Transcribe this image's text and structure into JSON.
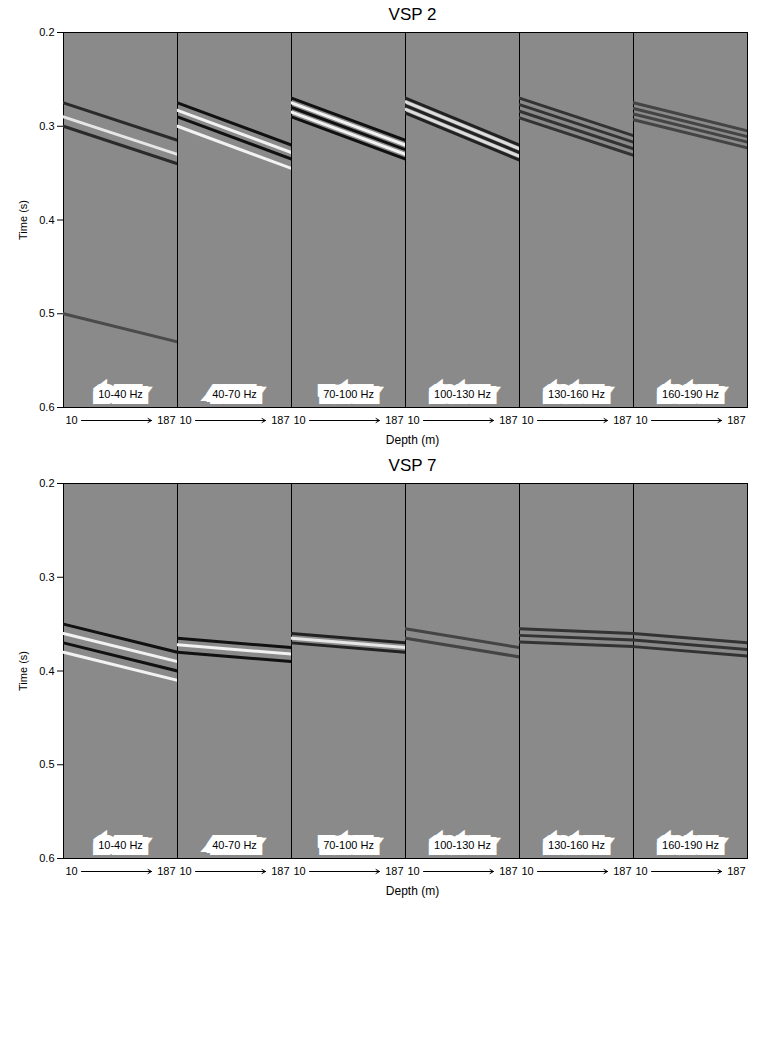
{
  "chart_data": [
    {
      "type": "line",
      "title": "VSP 2",
      "xlabel": "Depth (m)",
      "ylabel": "Time (s)",
      "xlim": [
        10,
        187
      ],
      "xticks": [
        10,
        187
      ],
      "ylim": [
        0.6,
        0.2
      ],
      "yticks": [
        0.2,
        0.3,
        0.4,
        0.5,
        0.6
      ],
      "panels": [
        {
          "label": "10-40 Hz",
          "x": [
            10,
            187
          ],
          "series": [
            {
              "color": "#2a2a2a",
              "values": [
                0.275,
                0.315
              ]
            },
            {
              "color": "#e6e6e6",
              "values": [
                0.29,
                0.33
              ]
            },
            {
              "color": "#2a2a2a",
              "values": [
                0.3,
                0.34
              ]
            },
            {
              "color": "#4a4a4a",
              "values": [
                0.5,
                0.53
              ]
            }
          ]
        },
        {
          "label": "40-70 Hz",
          "x": [
            10,
            187
          ],
          "series": [
            {
              "color": "#111111",
              "values": [
                0.275,
                0.32
              ]
            },
            {
              "color": "#f2f2f2",
              "values": [
                0.283,
                0.328
              ]
            },
            {
              "color": "#111111",
              "values": [
                0.29,
                0.335
              ]
            },
            {
              "color": "#f2f2f2",
              "values": [
                0.3,
                0.345
              ]
            }
          ]
        },
        {
          "label": "70-100 Hz",
          "x": [
            10,
            187
          ],
          "series": [
            {
              "color": "#111111",
              "values": [
                0.27,
                0.315
              ]
            },
            {
              "color": "#f2f2f2",
              "values": [
                0.275,
                0.32
              ]
            },
            {
              "color": "#111111",
              "values": [
                0.28,
                0.325
              ]
            },
            {
              "color": "#f2f2f2",
              "values": [
                0.285,
                0.33
              ]
            },
            {
              "color": "#111111",
              "values": [
                0.29,
                0.335
              ]
            }
          ]
        },
        {
          "label": "100-130 Hz",
          "x": [
            10,
            187
          ],
          "series": [
            {
              "color": "#222222",
              "values": [
                0.27,
                0.32
              ]
            },
            {
              "color": "#dddddd",
              "values": [
                0.274,
                0.324
              ]
            },
            {
              "color": "#222222",
              "values": [
                0.278,
                0.328
              ]
            },
            {
              "color": "#dddddd",
              "values": [
                0.282,
                0.332
              ]
            },
            {
              "color": "#222222",
              "values": [
                0.286,
                0.336
              ]
            }
          ]
        },
        {
          "label": "130-160 Hz",
          "x": [
            10,
            187
          ],
          "series": [
            {
              "color": "#333333",
              "values": [
                0.27,
                0.31
              ]
            },
            {
              "color": "#333333",
              "values": [
                0.277,
                0.317
              ]
            },
            {
              "color": "#333333",
              "values": [
                0.284,
                0.324
              ]
            },
            {
              "color": "#333333",
              "values": [
                0.291,
                0.331
              ]
            }
          ]
        },
        {
          "label": "160-190 Hz",
          "x": [
            10,
            187
          ],
          "series": [
            {
              "color": "#444444",
              "values": [
                0.275,
                0.305
              ]
            },
            {
              "color": "#444444",
              "values": [
                0.281,
                0.311
              ]
            },
            {
              "color": "#444444",
              "values": [
                0.287,
                0.317
              ]
            },
            {
              "color": "#444444",
              "values": [
                0.293,
                0.323
              ]
            }
          ]
        }
      ]
    },
    {
      "type": "line",
      "title": "VSP 7",
      "xlabel": "Depth (m)",
      "ylabel": "Time (s)",
      "xlim": [
        10,
        187
      ],
      "xticks": [
        10,
        187
      ],
      "ylim": [
        0.6,
        0.2
      ],
      "yticks": [
        0.2,
        0.3,
        0.4,
        0.5,
        0.6
      ],
      "panels": [
        {
          "label": "10-40 Hz",
          "x": [
            10,
            187
          ],
          "series": [
            {
              "color": "#111111",
              "values": [
                0.35,
                0.38
              ]
            },
            {
              "color": "#f2f2f2",
              "values": [
                0.36,
                0.39
              ]
            },
            {
              "color": "#111111",
              "values": [
                0.37,
                0.4
              ]
            },
            {
              "color": "#f2f2f2",
              "values": [
                0.38,
                0.41
              ]
            }
          ]
        },
        {
          "label": "40-70 Hz",
          "x": [
            10,
            187
          ],
          "series": [
            {
              "color": "#111111",
              "values": [
                0.365,
                0.375
              ]
            },
            {
              "color": "#f2f2f2",
              "values": [
                0.372,
                0.382
              ]
            },
            {
              "color": "#111111",
              "values": [
                0.38,
                0.39
              ]
            }
          ]
        },
        {
          "label": "70-100 Hz",
          "x": [
            10,
            187
          ],
          "series": [
            {
              "color": "#222222",
              "values": [
                0.36,
                0.37
              ]
            },
            {
              "color": "#e6e6e6",
              "values": [
                0.365,
                0.375
              ]
            },
            {
              "color": "#222222",
              "values": [
                0.37,
                0.38
              ]
            }
          ]
        },
        {
          "label": "100-130 Hz",
          "x": [
            10,
            187
          ],
          "series": [
            {
              "color": "#444444",
              "values": [
                0.355,
                0.375
              ]
            },
            {
              "color": "#444444",
              "values": [
                0.365,
                0.385
              ]
            }
          ]
        },
        {
          "label": "130-160 Hz",
          "x": [
            10,
            187
          ],
          "series": [
            {
              "color": "#333333",
              "values": [
                0.355,
                0.36
              ]
            },
            {
              "color": "#333333",
              "values": [
                0.362,
                0.367
              ]
            },
            {
              "color": "#333333",
              "values": [
                0.369,
                0.374
              ]
            }
          ]
        },
        {
          "label": "160-190 Hz",
          "x": [
            10,
            187
          ],
          "series": [
            {
              "color": "#333333",
              "values": [
                0.36,
                0.37
              ]
            },
            {
              "color": "#333333",
              "values": [
                0.367,
                0.377
              ]
            },
            {
              "color": "#333333",
              "values": [
                0.374,
                0.384
              ]
            }
          ]
        }
      ]
    }
  ]
}
